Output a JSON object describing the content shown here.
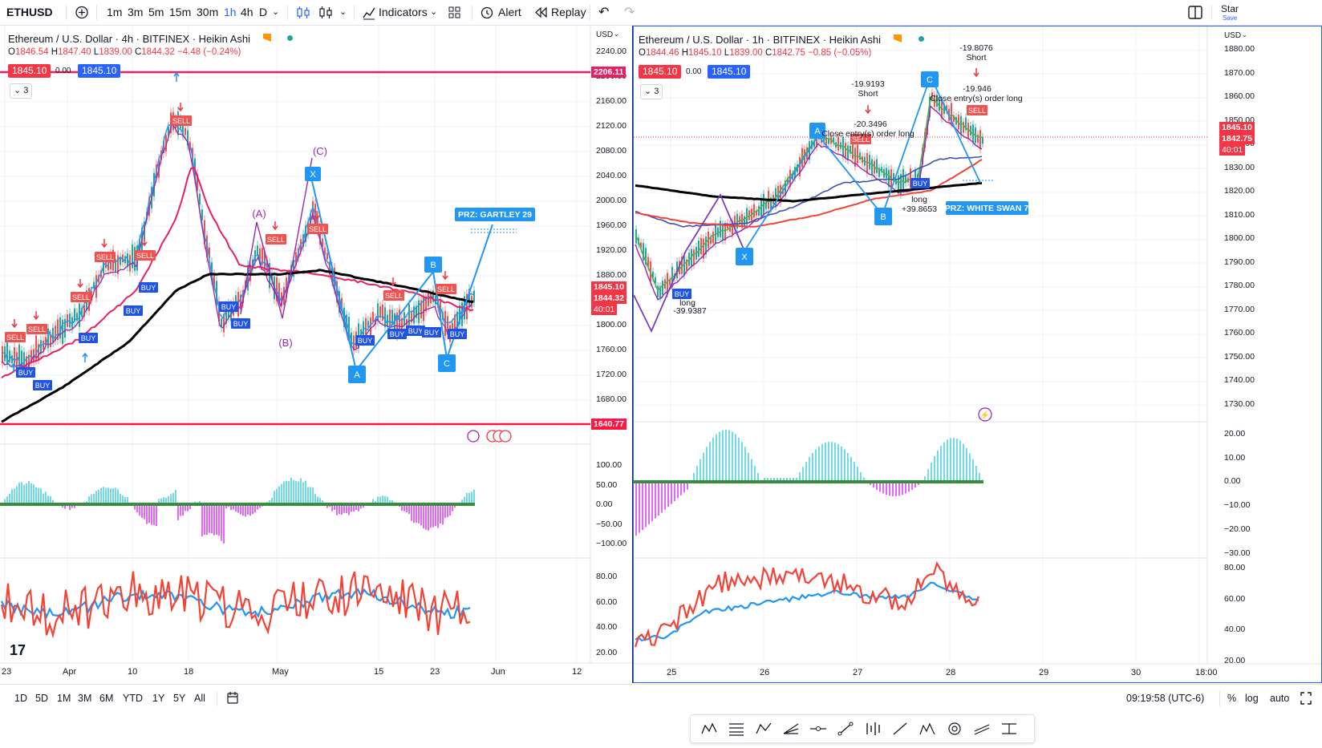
{
  "toolbar": {
    "symbol": "ETHUSD",
    "intervals": [
      "1m",
      "3m",
      "5m",
      "15m",
      "30m",
      "1h",
      "4h",
      "D"
    ],
    "active_interval": "1h",
    "indicators_label": "Indicators",
    "alert_label": "Alert",
    "replay_label": "Replay",
    "star_label": "Star",
    "save_label": "Save"
  },
  "left_chart": {
    "title": "Ethereum / U.S. Dollar · 4h · BITFINEX · Heikin Ashi",
    "ohlc": {
      "o": "1846.54",
      "h": "1847.40",
      "l": "1839.00",
      "c": "1844.32",
      "chg": "−4.48 (−0.24%)"
    },
    "bid": "1845.10",
    "spread": "0.00",
    "ask": "1845.10",
    "collapsed_count": "3",
    "currency": "USD",
    "price_ticks": [
      "2240.00",
      "2200.00",
      "2160.00",
      "2120.00",
      "2080.00",
      "2040.00",
      "2000.00",
      "1960.00",
      "1920.00",
      "1880.00",
      "1840.00",
      "1800.00",
      "1760.00",
      "1720.00",
      "1680.00",
      "1640.00"
    ],
    "price_labels": {
      "top_line": "2206.11",
      "current": "1845.10",
      "close": "1844.32",
      "countdown": "40:01",
      "bottom_line": "1640.77"
    },
    "osc_ticks": [
      "100.00",
      "50.00",
      "0.00",
      "−50.00",
      "−100.00"
    ],
    "rsi_ticks": [
      "80.00",
      "60.00",
      "40.00",
      "20.00"
    ],
    "x_labels": [
      "23",
      "Apr",
      "10",
      "18",
      "May",
      "15",
      "23",
      "Jun",
      "12"
    ],
    "annotations": {
      "A_wave": "(A)",
      "B_wave": "(B)",
      "C_wave": "(C)",
      "x": "X",
      "a": "A",
      "b": "B",
      "c": "C",
      "prz": "PRZ: GARTLEY 29"
    },
    "signals": {
      "buy": "BUY",
      "sell": "SELL"
    }
  },
  "right_chart": {
    "title": "Ethereum / U.S. Dollar · 1h · BITFINEX · Heikin Ashi",
    "ohlc": {
      "o": "1844.46",
      "h": "1845.10",
      "l": "1839.00",
      "c": "1842.75",
      "chg": "−0.85 (−0.05%)"
    },
    "bid": "1845.10",
    "spread": "0.00",
    "ask": "1845.10",
    "collapsed_count": "3",
    "currency": "USD",
    "price_ticks": [
      "1880.00",
      "1870.00",
      "1860.00",
      "1850.00",
      "1840.00",
      "1830.00",
      "1820.00",
      "1810.00",
      "1800.00",
      "1790.00",
      "1780.00",
      "1770.00",
      "1760.00",
      "1750.00",
      "1740.00",
      "1730.00"
    ],
    "price_labels": {
      "current": "1845.10",
      "close": "1842.75",
      "countdown": "40:01"
    },
    "osc_ticks": [
      "20.00",
      "10.00",
      "0.00",
      "−10.00",
      "−20.00",
      "−30.00"
    ],
    "rsi_ticks": [
      "80.00",
      "60.00",
      "40.00",
      "20.00"
    ],
    "x_labels": [
      "25",
      "26",
      "27",
      "28",
      "29",
      "30",
      "18:00"
    ],
    "annotations": {
      "x": "X",
      "a": "A",
      "b": "B",
      "c": "C",
      "prz": "PRZ: WHITE SWAN 7",
      "short1_val": "-19.9193",
      "short1": "Short",
      "close1_val": "-20.3496",
      "close1": "Close entry(s) order long",
      "short2_val": "-19.8076",
      "short2": "Short",
      "close2_val": "-19.946",
      "close2": "Close entry(s) order long",
      "long1": "long",
      "long1_val": "+39.8653",
      "long0": "long",
      "long0_val": "-39.9387"
    },
    "signals": {
      "buy": "BUY",
      "sell": "SELL"
    }
  },
  "bottombar": {
    "ranges": [
      "1D",
      "5D",
      "1M",
      "3M",
      "6M",
      "YTD",
      "1Y",
      "5Y",
      "All"
    ],
    "time": "09:19:58 (UTC-6)",
    "percent": "%",
    "log": "log",
    "auto": "auto"
  },
  "colors": {
    "red": "#f23645",
    "blue": "#2962ff",
    "teal": "#26c6da",
    "magenta": "#e040fb",
    "green": "#4caf50",
    "black": "#000000"
  }
}
